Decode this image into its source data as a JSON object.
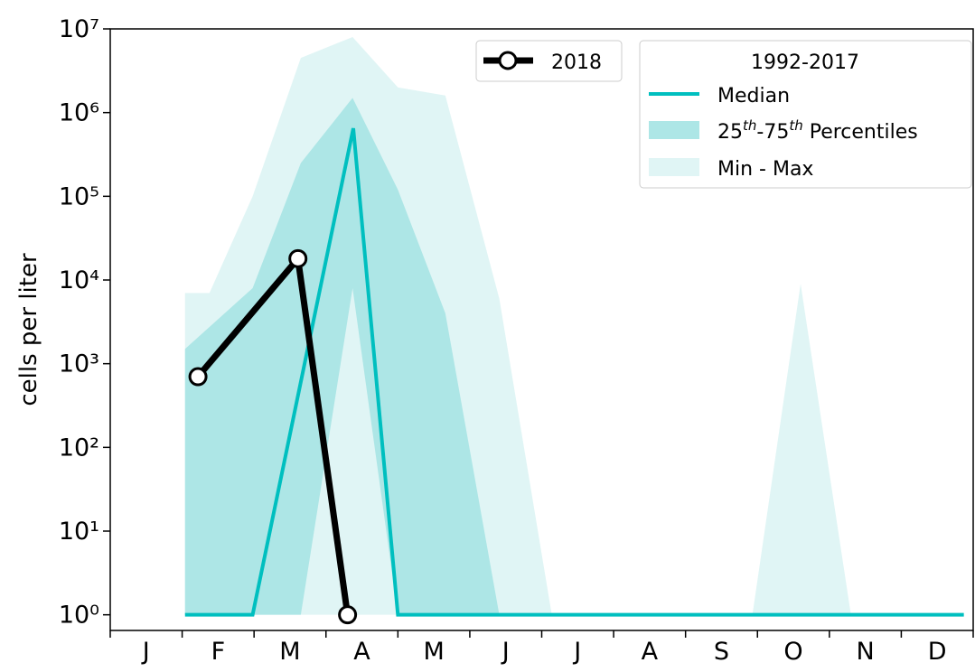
{
  "chart_data": {
    "type": "line",
    "y_label": "cells per liter",
    "log_y": true,
    "ylim": [
      0.65,
      10000000
    ],
    "yticks": [
      {
        "value": 1,
        "label": "10⁰"
      },
      {
        "value": 10,
        "label": "10¹"
      },
      {
        "value": 100,
        "label": "10²"
      },
      {
        "value": 1000,
        "label": "10³"
      },
      {
        "value": 10000,
        "label": "10⁴"
      },
      {
        "value": 100000,
        "label": "10⁵"
      },
      {
        "value": 1000000,
        "label": "10⁶"
      },
      {
        "value": 10000000,
        "label": "10⁷"
      }
    ],
    "xlim": [
      0,
      12
    ],
    "xticks": [
      0,
      1,
      2,
      3,
      4,
      5,
      6,
      7,
      8,
      9,
      10,
      11,
      12
    ],
    "categories": [
      "J",
      "F",
      "M",
      "A",
      "M",
      "J",
      "J",
      "A",
      "S",
      "O",
      "N",
      "D"
    ],
    "legend_title": "1992-2017",
    "bands": [
      {
        "name": "Min - Max",
        "color": "#e0f5f5",
        "x": [
          1.04,
          1.38,
          1.98,
          2.65,
          3.37,
          4.0,
          4.66,
          5.41,
          6.14,
          8.93,
          9.6,
          10.3,
          11.87
        ],
        "low": [
          1,
          1,
          1,
          1,
          1,
          1,
          1,
          1,
          1,
          1,
          1,
          1,
          1
        ],
        "high": [
          7000,
          7000,
          100000,
          4500000,
          8000000,
          2000000,
          1600000,
          6000,
          1,
          1,
          9000,
          1,
          1
        ]
      },
      {
        "name": "25th-75th Percentiles",
        "color": "#ade6e6",
        "x": [
          1.04,
          1.98,
          2.65,
          3.37,
          4.0,
          4.66,
          5.41
        ],
        "low": [
          1,
          1,
          1,
          8000,
          1,
          1,
          1
        ],
        "high": [
          1500,
          8000,
          250000,
          1500000,
          120000,
          4000,
          1
        ]
      }
    ],
    "series": [
      {
        "name": "Median",
        "color": "#00bfbf",
        "x": [
          1.04,
          1.98,
          3.38,
          4.0,
          11.87
        ],
        "values": [
          1,
          1,
          650000,
          1,
          1
        ]
      },
      {
        "name": "2018",
        "color": "#000000",
        "x": [
          1.22,
          2.61,
          3.3
        ],
        "values": [
          700,
          18000,
          1
        ]
      }
    ]
  }
}
